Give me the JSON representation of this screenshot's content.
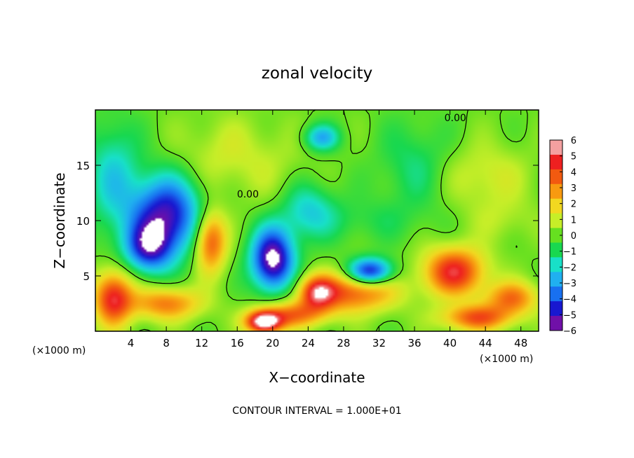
{
  "chart_data": {
    "type": "heatmap",
    "title": "zonal velocity",
    "xlabel": "X−coordinate",
    "ylabel": "Z−coordinate",
    "x_unit_label": "(×1000 m)",
    "y_unit_label": "(×1000 m)",
    "footer": "CONTOUR INTERVAL = 1.000E+01",
    "xlim": [
      0,
      50
    ],
    "ylim": [
      0,
      20
    ],
    "x_ticks": [
      4,
      8,
      12,
      16,
      20,
      24,
      28,
      32,
      36,
      40,
      44,
      48
    ],
    "y_ticks": [
      5,
      10,
      15
    ],
    "colorbar": {
      "min": -6,
      "max": 6,
      "tick_values": [
        6,
        5,
        4,
        3,
        2,
        1,
        0,
        -1,
        -2,
        -3,
        -4,
        -5,
        -6
      ],
      "tick_labels": [
        "6",
        "5",
        "4",
        "3",
        "2",
        "1",
        "0",
        "−1",
        "−2",
        "−3",
        "−4",
        "−5",
        "−6"
      ],
      "colors": [
        "#f4a0a0",
        "#ee2020",
        "#f25a10",
        "#f89a10",
        "#f2d820",
        "#c6ee28",
        "#66e020",
        "#18d850",
        "#18e0c8",
        "#20b0f0",
        "#1870f0",
        "#1818d0",
        "#7010a8"
      ]
    },
    "contour_labels": [
      {
        "text": "0.00",
        "x": 17.2,
        "y": 12.4
      },
      {
        "text": "0.00",
        "x": 40.6,
        "y": 19.3
      }
    ],
    "features": [
      {
        "x": 8,
        "y": 10.5,
        "rx": 4,
        "ry": 3.5,
        "value": -5.5
      },
      {
        "x": 20,
        "y": 6.5,
        "rx": 2.4,
        "ry": 2.8,
        "value": -6.5
      },
      {
        "x": 6,
        "y": 7.5,
        "rx": 2.6,
        "ry": 2.2,
        "value": -4.2
      },
      {
        "x": 13,
        "y": 8.2,
        "rx": 1.8,
        "ry": 2.8,
        "value": 4.5
      },
      {
        "x": 24,
        "y": 11,
        "rx": 3,
        "ry": 2.5,
        "value": -2.2
      },
      {
        "x": 29,
        "y": 3.5,
        "rx": 5,
        "ry": 1.8,
        "value": 4
      },
      {
        "x": 31,
        "y": 5.4,
        "rx": 2.5,
        "ry": 1.2,
        "value": -5.5
      },
      {
        "x": 40.5,
        "y": 5.4,
        "rx": 3.5,
        "ry": 2.2,
        "value": 5
      },
      {
        "x": 43,
        "y": 1.2,
        "rx": 4,
        "ry": 1.2,
        "value": 4
      },
      {
        "x": 47,
        "y": 3,
        "rx": 3,
        "ry": 1.5,
        "value": 3.5
      },
      {
        "x": 25,
        "y": 3.5,
        "rx": 2,
        "ry": 1.5,
        "value": 4
      },
      {
        "x": 2,
        "y": 3,
        "rx": 2.2,
        "ry": 2.5,
        "value": 5
      },
      {
        "x": 8,
        "y": 2.5,
        "rx": 4,
        "ry": 1.5,
        "value": 3.5
      },
      {
        "x": 22,
        "y": 1.5,
        "rx": 4,
        "ry": 1.2,
        "value": 3.5
      },
      {
        "x": 19,
        "y": 0.8,
        "rx": 2,
        "ry": 1,
        "value": 6.5
      },
      {
        "x": 14,
        "y": 16,
        "rx": 5,
        "ry": 3.5,
        "value": 1
      },
      {
        "x": 25.5,
        "y": 17.5,
        "rx": 2,
        "ry": 1.2,
        "value": -3
      },
      {
        "x": 44,
        "y": 14,
        "rx": 5,
        "ry": 3,
        "value": 1.3
      },
      {
        "x": 46,
        "y": 10,
        "rx": 4,
        "ry": 2,
        "value": 0.7
      },
      {
        "x": 20,
        "y": 15,
        "rx": 5,
        "ry": 4,
        "value": 0.6
      },
      {
        "x": 30,
        "y": 10,
        "rx": 7,
        "ry": 2,
        "value": -0.8
      },
      {
        "x": 2,
        "y": 14,
        "rx": 3,
        "ry": 5,
        "value": -2.2
      },
      {
        "x": 36,
        "y": 15,
        "rx": 4,
        "ry": 4,
        "value": -1.3
      }
    ]
  }
}
